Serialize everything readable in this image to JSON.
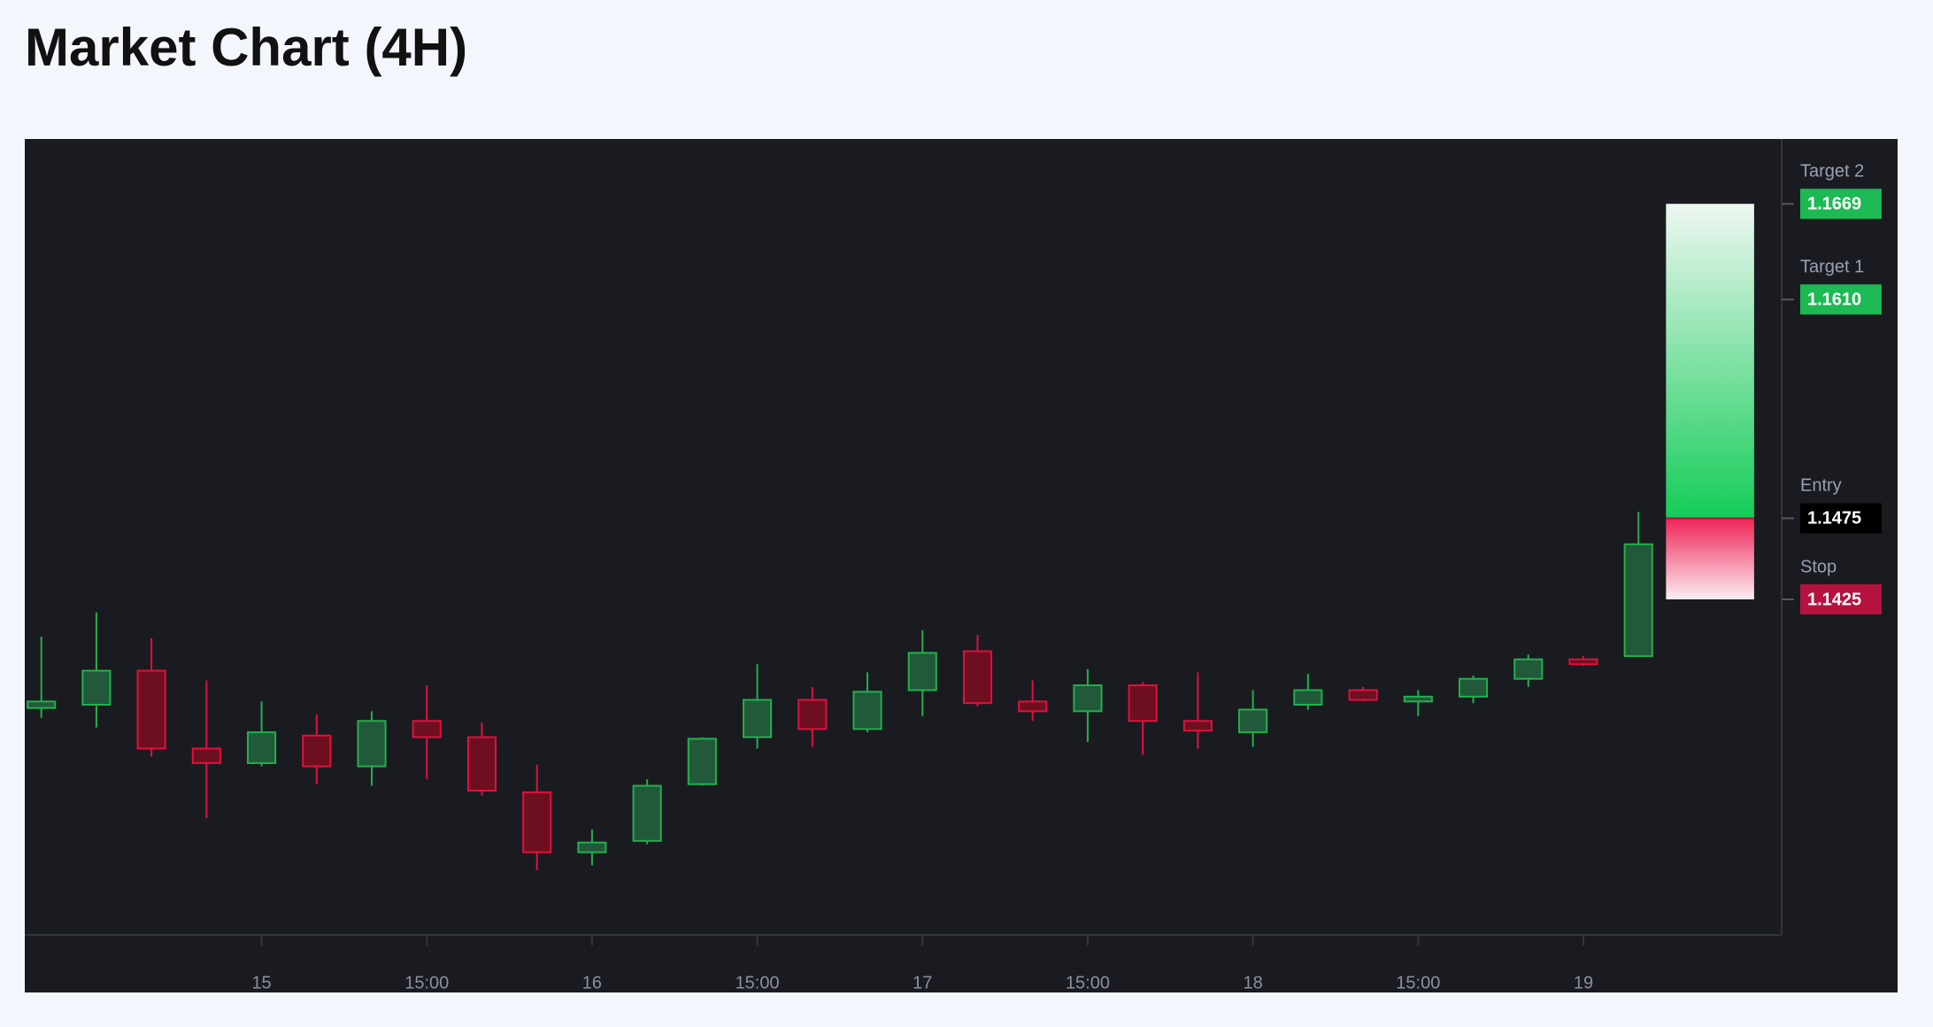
{
  "chart_data": {
    "type": "candlestick",
    "title": "Market Chart (4H)",
    "categories": [
      null,
      null,
      null,
      null,
      "15",
      null,
      null,
      "15:00",
      null,
      null,
      "16",
      null,
      null,
      "15:00",
      null,
      null,
      "17",
      null,
      null,
      "15:00",
      null,
      null,
      "18",
      null,
      null,
      "15:00",
      null,
      null,
      "19",
      null
    ],
    "open": [
      1.1358,
      1.136,
      1.1381,
      1.1333,
      1.1324,
      1.1341,
      1.1322,
      1.135,
      1.134,
      1.1306,
      1.1269,
      1.1276,
      1.1311,
      1.134,
      1.1363,
      1.1345,
      1.1369,
      1.1393,
      1.1362,
      1.1356,
      1.1372,
      1.135,
      1.1343,
      1.136,
      1.1369,
      1.1362,
      1.1365,
      1.1376,
      1.1388,
      1.139
    ],
    "high": [
      1.1402,
      1.1417,
      1.1401,
      1.1375,
      1.1362,
      1.1354,
      1.1356,
      1.1372,
      1.1349,
      1.1323,
      1.1283,
      1.1314,
      1.134,
      1.1385,
      1.1371,
      1.138,
      1.1406,
      1.1403,
      1.1375,
      1.1382,
      1.1374,
      1.138,
      1.1369,
      1.1379,
      1.1371,
      1.1369,
      1.1378,
      1.1391,
      1.139,
      1.1479
    ],
    "low": [
      1.1352,
      1.1346,
      1.1328,
      1.129,
      1.1322,
      1.1311,
      1.131,
      1.1314,
      1.1304,
      1.1258,
      1.1261,
      1.1274,
      1.131,
      1.1333,
      1.1334,
      1.1343,
      1.1353,
      1.1359,
      1.135,
      1.1337,
      1.1329,
      1.1333,
      1.1334,
      1.1357,
      1.1362,
      1.1353,
      1.1361,
      1.1371,
      1.1384,
      1.139
    ],
    "close": [
      1.1362,
      1.1381,
      1.1333,
      1.1324,
      1.1343,
      1.1322,
      1.135,
      1.134,
      1.1307,
      1.1269,
      1.1275,
      1.131,
      1.1339,
      1.1363,
      1.1345,
      1.1368,
      1.1392,
      1.1361,
      1.1356,
      1.1372,
      1.135,
      1.1344,
      1.1357,
      1.1369,
      1.1363,
      1.1365,
      1.1376,
      1.1388,
      1.1385,
      1.1459
    ],
    "up_color": "#22b04b",
    "up_fill": "#22593a",
    "down_color": "#e0103f",
    "down_fill": "#6e0f1f",
    "ylim": [
      1.1218,
      1.1709
    ],
    "levels": {
      "names": [
        "Target 2",
        "Target 1",
        "Entry",
        "Stop"
      ],
      "values": [
        1.1669,
        1.161,
        1.1475,
        1.1425
      ],
      "value_labels": [
        "1.1669",
        "1.1610",
        "1.1475",
        "1.1425"
      ],
      "colors": [
        "#1db954",
        "#1db954",
        "#000000",
        "#b5123f"
      ]
    }
  }
}
